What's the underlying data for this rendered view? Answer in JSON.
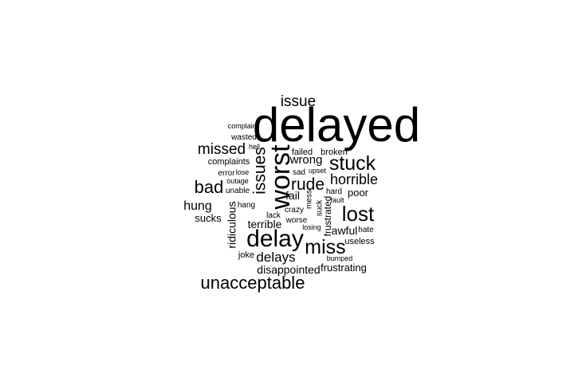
{
  "chart_data": {
    "type": "wordcloud",
    "words": [
      {
        "text": "delayed",
        "weight": 100
      },
      {
        "text": "worst",
        "weight": 58
      },
      {
        "text": "delay",
        "weight": 47
      },
      {
        "text": "lost",
        "weight": 40
      },
      {
        "text": "stuck",
        "weight": 40
      },
      {
        "text": "miss",
        "weight": 39
      },
      {
        "text": "unacceptable",
        "weight": 37
      },
      {
        "text": "bad",
        "weight": 36
      },
      {
        "text": "issues",
        "weight": 35
      },
      {
        "text": "rude",
        "weight": 34
      },
      {
        "text": "missed",
        "weight": 33
      },
      {
        "text": "issue",
        "weight": 32
      },
      {
        "text": "horrible",
        "weight": 31
      },
      {
        "text": "delays",
        "weight": 29
      },
      {
        "text": "hung",
        "weight": 26
      },
      {
        "text": "wrong",
        "weight": 25
      },
      {
        "text": "ridiculous",
        "weight": 23
      },
      {
        "text": "terrible",
        "weight": 23
      },
      {
        "text": "fail",
        "weight": 23
      },
      {
        "text": "disappointed",
        "weight": 22
      },
      {
        "text": "awful",
        "weight": 22
      },
      {
        "text": "frustrating",
        "weight": 21
      },
      {
        "text": "sucks",
        "weight": 21
      },
      {
        "text": "poor",
        "weight": 20
      },
      {
        "text": "frustrated",
        "weight": 18
      },
      {
        "text": "broken",
        "weight": 17
      },
      {
        "text": "failed",
        "weight": 17
      },
      {
        "text": "useless",
        "weight": 17
      },
      {
        "text": "joke",
        "weight": 17
      },
      {
        "text": "complaints",
        "weight": 16
      },
      {
        "text": "hard",
        "weight": 16
      },
      {
        "text": "worse",
        "weight": 16
      },
      {
        "text": "suck",
        "weight": 16
      },
      {
        "text": "mess",
        "weight": 15
      },
      {
        "text": "sad",
        "weight": 15
      },
      {
        "text": "lack",
        "weight": 15
      },
      {
        "text": "hang",
        "weight": 15
      },
      {
        "text": "hate",
        "weight": 15
      },
      {
        "text": "error",
        "weight": 14
      },
      {
        "text": "unable",
        "weight": 14
      },
      {
        "text": "wasted",
        "weight": 13
      },
      {
        "text": "crazy",
        "weight": 13
      },
      {
        "text": "complaint",
        "weight": 13
      },
      {
        "text": "losing",
        "weight": 13
      },
      {
        "text": "bumped",
        "weight": 13
      },
      {
        "text": "fault",
        "weight": 13
      },
      {
        "text": "lose",
        "weight": 13
      },
      {
        "text": "outage",
        "weight": 13
      },
      {
        "text": "upset",
        "weight": 12
      },
      {
        "text": "hell",
        "weight": 12
      }
    ]
  }
}
